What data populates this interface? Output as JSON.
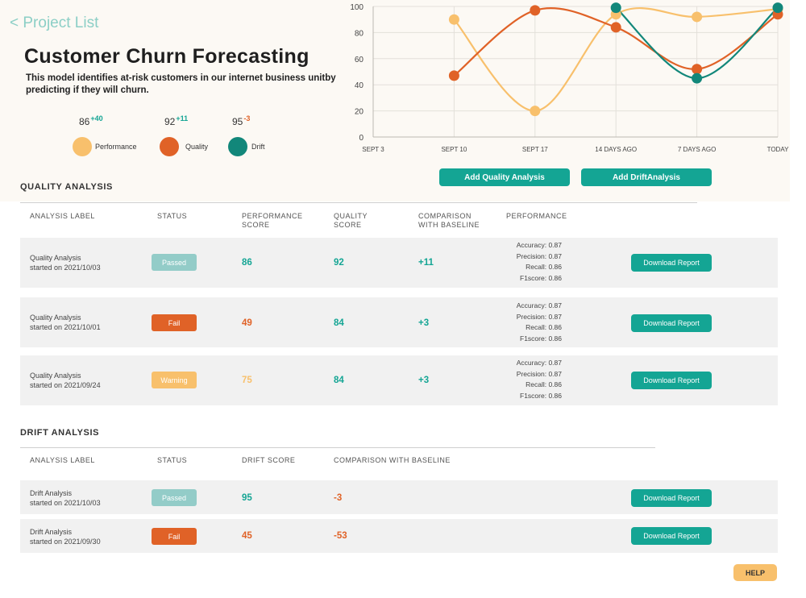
{
  "header": {
    "back_label": "< Project List",
    "title": "Customer Churn Forecasting",
    "description": "This model identifies at-risk customers in our internet business unitby predicting if they will churn."
  },
  "colors": {
    "performance": "#f8c06c",
    "quality": "#e06227",
    "drift": "#12877a",
    "teal_button": "#14a594",
    "status_passed": "#93ccc8",
    "status_fail": "#e06227",
    "status_warning": "#f8c06c"
  },
  "legend": [
    {
      "score": "86",
      "delta": "+40",
      "label": "Performance",
      "color": "#f8c06c",
      "delta_color": "#14a594"
    },
    {
      "score": "92",
      "delta": "+11",
      "label": "Quality",
      "color": "#e06227",
      "delta_color": "#14a594"
    },
    {
      "score": "95",
      "delta": "-3",
      "label": "Drift",
      "color": "#12877a",
      "delta_color": "#e06227"
    }
  ],
  "chart_data": {
    "type": "line",
    "x": [
      "SEPT 3",
      "SEPT 10",
      "SEPT 17",
      "14 DAYS AGO",
      "7 DAYS AGO",
      "TODAY"
    ],
    "ylim": [
      0,
      100
    ],
    "yticks": [
      0,
      20,
      40,
      60,
      80,
      100
    ],
    "grid": true,
    "series": [
      {
        "name": "Performance",
        "color": "#f8c06c",
        "points": [
          [
            1,
            90
          ],
          [
            2,
            20
          ],
          [
            3,
            94
          ],
          [
            4,
            92
          ],
          [
            5,
            98
          ]
        ]
      },
      {
        "name": "Quality",
        "color": "#e06227",
        "points": [
          [
            1,
            47
          ],
          [
            2,
            97
          ],
          [
            3,
            84
          ],
          [
            4,
            52
          ],
          [
            5,
            94
          ]
        ]
      },
      {
        "name": "Drift",
        "color": "#12877a",
        "points": [
          [
            3,
            99
          ],
          [
            4,
            45
          ],
          [
            5,
            99
          ]
        ]
      }
    ]
  },
  "actions": {
    "add_quality": "Add Quality Analysis",
    "add_drift": "Add DriftAnalysis"
  },
  "quality": {
    "title": "QUALITY ANALYSIS",
    "columns": [
      "ANALYSIS LABEL",
      "STATUS",
      "PERFORMANCE\nSCORE",
      "QUALITY\nSCORE",
      "COMPARISON\nWITH BASELINE",
      "PERFORMANCE"
    ],
    "rows": [
      {
        "label": "Quality Analysis\nstarted on 2021/10/03",
        "status": "Passed",
        "status_color": "#93ccc8",
        "perf": "86",
        "perf_color": "#14a594",
        "quality": "92",
        "comparison": "+11",
        "accuracy": "Accuracy: 0.87",
        "precision": "Precision: 0.87",
        "recall": "Recall: 0.86",
        "f1": "F1score: 0.86",
        "download": "Download Report"
      },
      {
        "label": "Quality Analysis\nstarted on 2021/10/01",
        "status": "Fail",
        "status_color": "#e06227",
        "perf": "49",
        "perf_color": "#e06227",
        "quality": "84",
        "comparison": "+3",
        "accuracy": "Accuracy: 0.87",
        "precision": "Precision: 0.87",
        "recall": "Recall: 0.86",
        "f1": "F1score: 0.86",
        "download": "Download Report"
      },
      {
        "label": "Quality Analysis\nstarted on 2021/09/24",
        "status": "Warning",
        "status_color": "#f8c06c",
        "perf": "75",
        "perf_color": "#f8c06c",
        "quality": "84",
        "comparison": "+3",
        "accuracy": "Accuracy: 0.87",
        "precision": "Precision: 0.87",
        "recall": "Recall: 0.86",
        "f1": "F1score: 0.86",
        "download": "Download Report"
      }
    ]
  },
  "drift": {
    "title": "DRIFT ANALYSIS",
    "columns": [
      "ANALYSIS LABEL",
      "STATUS",
      "DRIFT SCORE",
      "COMPARISON WITH BASELINE"
    ],
    "rows": [
      {
        "label": "Drift Analysis\nstarted on 2021/10/03",
        "status": "Passed",
        "status_color": "#93ccc8",
        "score": "95",
        "score_color": "#14a594",
        "comparison": "-3",
        "download": "Download Report"
      },
      {
        "label": "Drift Analysis\nstarted on 2021/09/30",
        "status": "Fail",
        "status_color": "#e06227",
        "score": "45",
        "score_color": "#e06227",
        "comparison": "-53",
        "download": "Download Report"
      }
    ]
  },
  "help_label": "HELP"
}
